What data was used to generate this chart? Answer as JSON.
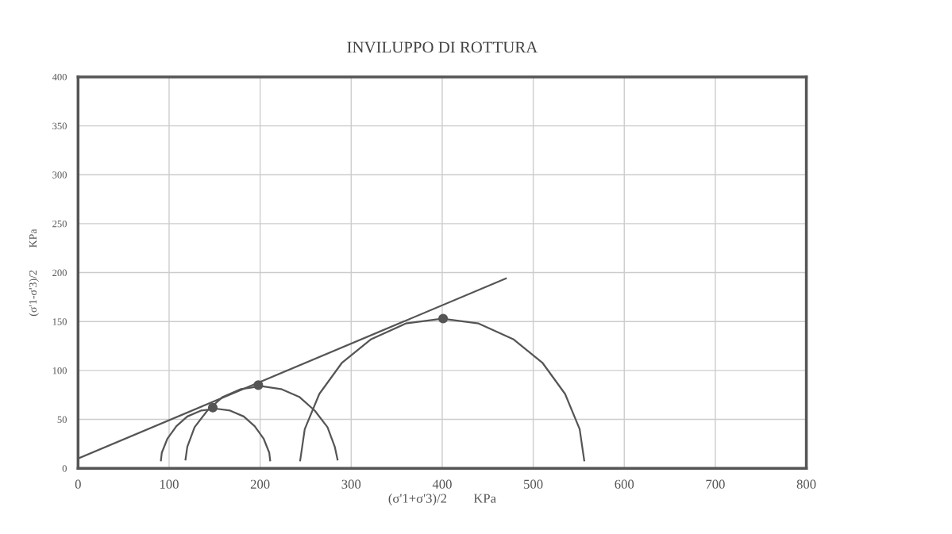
{
  "chart_data": {
    "type": "line",
    "title": "INVILUPPO DI ROTTURA",
    "xlabel": "(σ'1+σ'3)/2        KPa",
    "ylabel": "(σ'1-σ'3)/2        KPa",
    "xlim": [
      0,
      800
    ],
    "ylim": [
      0,
      400
    ],
    "xticks": [
      0,
      100,
      200,
      300,
      400,
      500,
      600,
      700,
      800
    ],
    "yticks": [
      0,
      50,
      100,
      150,
      200,
      250,
      300,
      350,
      400
    ],
    "grid": true,
    "marker": "none",
    "line_style": "solid",
    "series": [
      {
        "color": "#555555",
        "x": [
          0,
          470
        ],
        "values": [
          10,
          194
        ]
      },
      {
        "color": "#555555",
        "x": [
          91,
          92,
          98,
          108,
          120,
          135,
          151,
          167,
          182,
          194,
          204,
          210,
          211
        ],
        "values": [
          8,
          16,
          30,
          43,
          53,
          59,
          61,
          59,
          53,
          43,
          30,
          16,
          8
        ]
      },
      {
        "color": "#555555",
        "x": [
          118,
          120,
          128,
          142,
          159,
          179,
          201,
          223,
          243,
          260,
          274,
          282,
          285
        ],
        "values": [
          9,
          22,
          42,
          59,
          73,
          81,
          84,
          81,
          73,
          59,
          42,
          22,
          9
        ]
      },
      {
        "color": "#555555",
        "x": [
          244,
          249,
          265,
          290,
          322,
          360,
          400,
          440,
          478,
          510,
          535,
          551,
          556
        ],
        "values": [
          8,
          40,
          76,
          108,
          132,
          148,
          153,
          148,
          132,
          108,
          76,
          40,
          8
        ]
      },
      {
        "type": "scatter",
        "color": "#555555",
        "marker": "circle",
        "x": [
          148,
          198,
          401
        ],
        "values": [
          62,
          85,
          153
        ]
      }
    ]
  }
}
